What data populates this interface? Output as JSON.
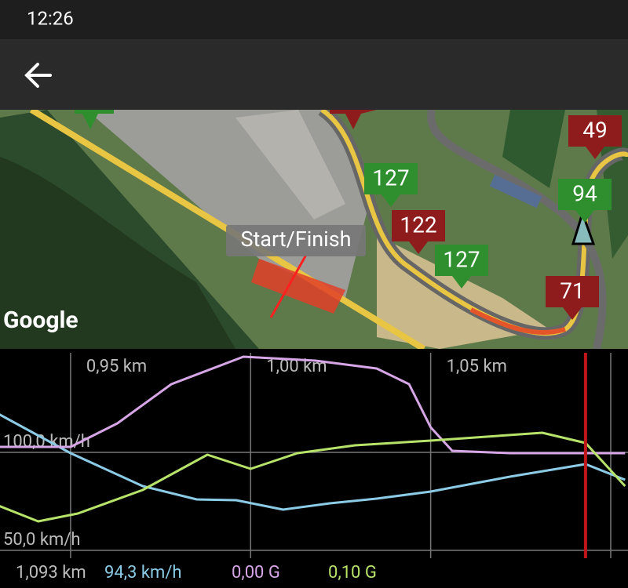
{
  "status_bar": {
    "time": "12:26"
  },
  "map": {
    "attribution": "Google",
    "start_label": "Start/Finish",
    "markers": [
      {
        "value": 127,
        "color": "#2f8f2f"
      },
      {
        "value": 122,
        "color": "#8e1c1c"
      },
      {
        "value": 127,
        "color": "#2f8f2f"
      },
      {
        "value": 71,
        "color": "#8e1c1c"
      },
      {
        "value": 49,
        "color": "#8e1c1c"
      },
      {
        "value": 94,
        "color": "#2f8f2f"
      }
    ]
  },
  "chart_data": {
    "type": "line",
    "xlim": [
      0.9304,
      1.1048
    ],
    "xticks": [
      {
        "value": 0.95,
        "label": "0,95 km"
      },
      {
        "value": 1.0,
        "label": "1,00 km"
      },
      {
        "value": 1.05,
        "label": "1,05 km"
      },
      {
        "value": 1.1,
        "label": ""
      }
    ],
    "ylim": [
      44.8,
      150.8
    ],
    "yticks": [
      {
        "value": 100,
        "label": "100,0 km/h"
      },
      {
        "value": 50,
        "label": "50,0 km/h"
      }
    ],
    "grid": true,
    "series": [
      {
        "color": "#8ccbe6",
        "x": [
          0.93,
          0.95,
          0.97,
          0.985,
          0.996,
          1.009,
          1.022,
          1.035,
          1.05,
          1.072,
          1.093,
          1.104
        ],
        "values": [
          119.6,
          99.6,
          82.8,
          76,
          75.6,
          70.8,
          74,
          76.4,
          80,
          87.6,
          94,
          86
        ]
      },
      {
        "color": "#d6a6e6",
        "x": [
          0.93,
          0.95,
          0.963,
          0.978,
          0.998,
          1.018,
          1.035,
          1.044,
          1.05,
          1.056,
          1.072,
          1.104
        ],
        "values": [
          102.8,
          102.8,
          114.8,
          134.8,
          148.8,
          146.8,
          142.8,
          134.8,
          112.8,
          100.8,
          99.6,
          99.6
        ]
      },
      {
        "color": "#b7e36a",
        "x": [
          0.93,
          0.941,
          0.952,
          0.97,
          0.988,
          1.0,
          1.013,
          1.029,
          1.05,
          1.081,
          1.093,
          1.104
        ],
        "values": [
          72.8,
          64.8,
          68.8,
          80.8,
          98.8,
          91.6,
          99.6,
          103.6,
          106,
          110,
          104.8,
          82.8
        ]
      }
    ],
    "cursor": {
      "value": 1.093,
      "label": "1,093 km",
      "color": "#c0161a"
    },
    "readouts": [
      {
        "label": "94,3 km/h",
        "color": "#8ccbe6"
      },
      {
        "label": "0,00 G",
        "color": "#d6a6e6"
      },
      {
        "label": "0,10 G",
        "color": "#b7e36a"
      }
    ]
  }
}
